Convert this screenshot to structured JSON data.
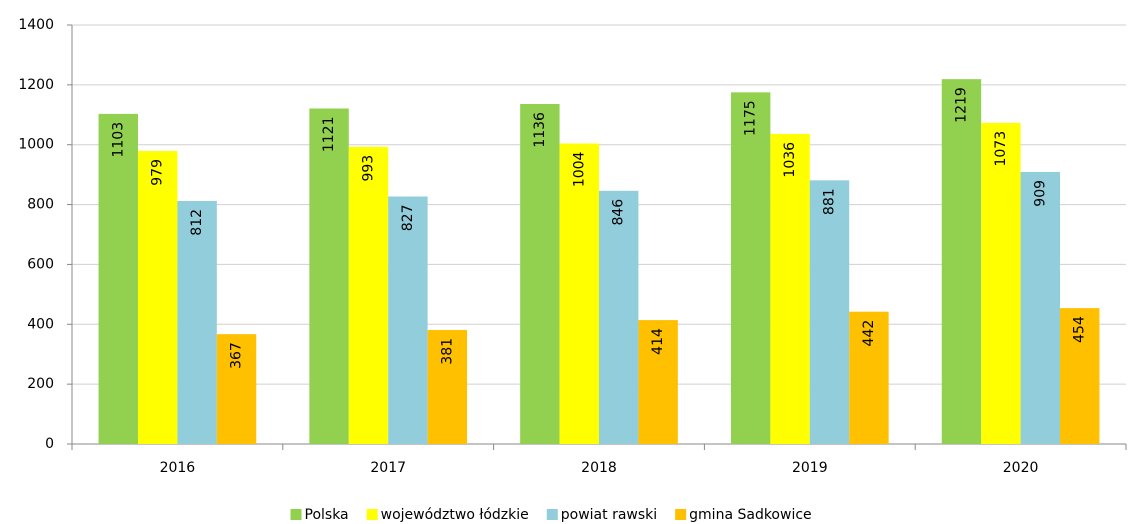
{
  "chart_data": {
    "type": "bar",
    "categories": [
      "2016",
      "2017",
      "2018",
      "2019",
      "2020"
    ],
    "series": [
      {
        "name": "Polska",
        "color": "#92d050",
        "values": [
          1103,
          1121,
          1136,
          1175,
          1219
        ]
      },
      {
        "name": "województwo łódzkie",
        "color": "#ffff00",
        "values": [
          979,
          993,
          1004,
          1036,
          1073
        ]
      },
      {
        "name": "powiat rawski",
        "color": "#92cddc",
        "values": [
          812,
          827,
          846,
          881,
          909
        ]
      },
      {
        "name": "gmina Sadkowice",
        "color": "#ffc000",
        "values": [
          367,
          381,
          414,
          442,
          454
        ]
      }
    ],
    "ylim": [
      0,
      1400
    ],
    "yticks": [
      0,
      200,
      400,
      600,
      800,
      1000,
      1200,
      1400
    ],
    "grid": true,
    "legend": "bottom"
  }
}
